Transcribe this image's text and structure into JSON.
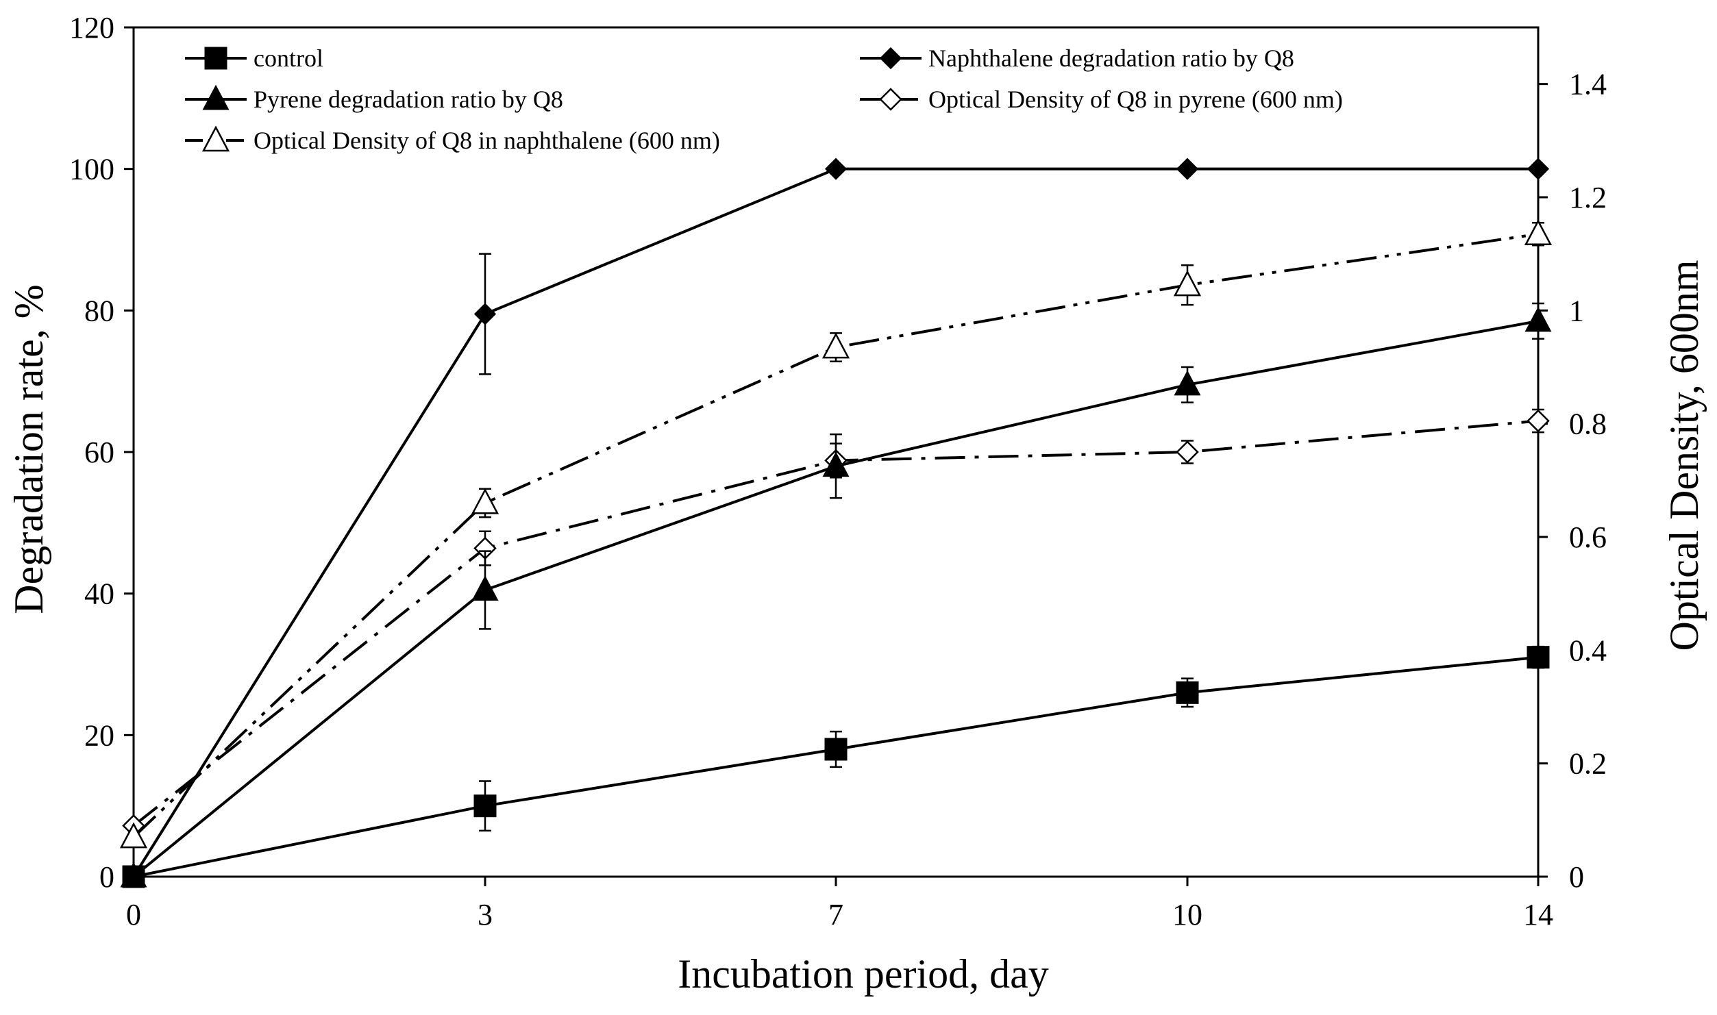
{
  "chart_data": {
    "type": "line",
    "title": "",
    "xlabel": "Incubation period, day",
    "ylabel": "Degradation rate, %",
    "y2label": "Optical Density, 600nm",
    "x_categories": [
      "0",
      "3",
      "7",
      "10",
      "14"
    ],
    "ylim": [
      0,
      120
    ],
    "yticks": [
      "0",
      "20",
      "40",
      "60",
      "80",
      "100",
      "120"
    ],
    "y2lim": [
      0,
      1.5
    ],
    "y2ticks": [
      "0",
      "0.2",
      "0.4",
      "0.6",
      "0.8",
      "1",
      "1.2",
      "1.4"
    ],
    "legend_position": "top",
    "series": [
      {
        "name": "control",
        "axis": "left",
        "marker": "filled-square",
        "line": "solid",
        "values": [
          0,
          10,
          18,
          26,
          31
        ],
        "errors": [
          0,
          3.5,
          2.5,
          2,
          1.5
        ]
      },
      {
        "name": "Naphthalene degradation ratio by Q8",
        "axis": "left",
        "marker": "filled-diamond",
        "line": "solid",
        "values": [
          0,
          79.5,
          100,
          100,
          100
        ],
        "errors": [
          0,
          8.5,
          0,
          0,
          0
        ]
      },
      {
        "name": "Pyrene degradation ratio by Q8",
        "axis": "left",
        "marker": "filled-triangle",
        "line": "solid",
        "values": [
          0,
          40.5,
          58,
          69.5,
          78.5
        ],
        "errors": [
          0,
          5.5,
          4.5,
          2.5,
          2.5
        ]
      },
      {
        "name": "Optical Density of Q8 in pyrene (600 nm)",
        "axis": "right",
        "marker": "open-diamond",
        "line": "dash-dot",
        "values": [
          0.09,
          0.58,
          0.735,
          0.75,
          0.805
        ],
        "errors": [
          0,
          0.03,
          0.03,
          0.02,
          0.02
        ]
      },
      {
        "name": "Optical Density of Q8 in naphthalene (600 nm)",
        "axis": "right",
        "marker": "open-triangle",
        "line": "dash-dot-dot",
        "values": [
          0.07,
          0.66,
          0.935,
          1.045,
          1.135
        ],
        "errors": [
          0,
          0.025,
          0.025,
          0.035,
          0.02
        ]
      }
    ]
  }
}
